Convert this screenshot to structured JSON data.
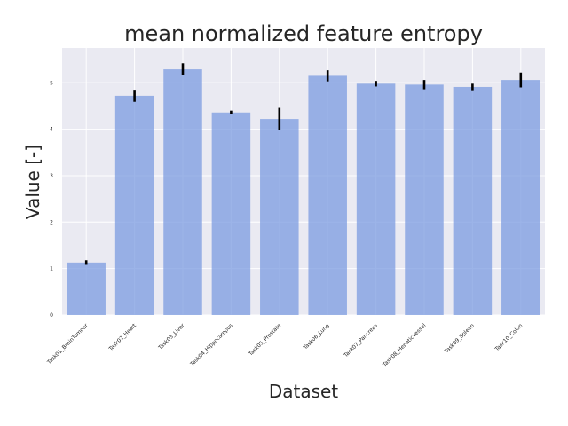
{
  "chart_data": {
    "type": "bar",
    "title": "mean normalized feature entropy",
    "xlabel": "Dataset",
    "ylabel": "Value [-]",
    "ylim": [
      0,
      5.75
    ],
    "yticks": [
      0,
      1,
      2,
      3,
      4,
      5
    ],
    "grid": true,
    "categories": [
      "Task01_BrainTumour",
      "Task02_Heart",
      "Task03_Liver",
      "Task04_Hippocampus",
      "Task05_Prostate",
      "Task06_Lung",
      "Task07_Pancreas",
      "Task08_HepaticVessel",
      "Task09_Spleen",
      "Task10_Colon"
    ],
    "values": [
      1.13,
      4.72,
      5.29,
      4.36,
      4.22,
      5.15,
      4.98,
      4.96,
      4.91,
      5.06
    ],
    "errors": [
      0.05,
      0.13,
      0.13,
      0.04,
      0.24,
      0.12,
      0.06,
      0.1,
      0.07,
      0.16
    ],
    "colors": {
      "bar": "#7b9be0",
      "background": "#eaeaf2",
      "grid": "#ffffff",
      "error": "#000000"
    }
  }
}
